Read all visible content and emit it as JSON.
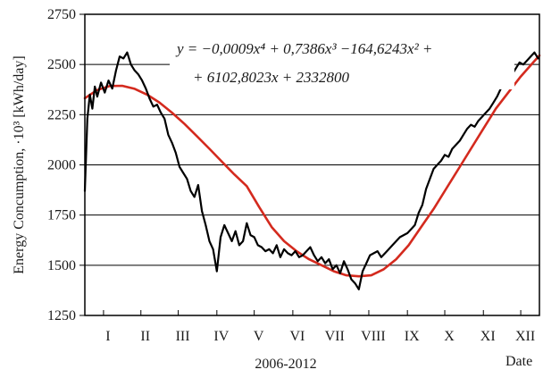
{
  "chart_data": {
    "type": "line",
    "ylabel": "Energy Concumption, ·10³ [kWh/day]",
    "xlabel": "2006-2012",
    "xlabel_right": "Date",
    "ylim": [
      1250,
      2750
    ],
    "yticks": [
      1250,
      1500,
      1750,
      2000,
      2250,
      2500,
      2750
    ],
    "xlim": [
      0,
      365
    ],
    "month_ticks": [
      {
        "label": "I",
        "x": 15
      },
      {
        "label": "II",
        "x": 45
      },
      {
        "label": "III",
        "x": 75
      },
      {
        "label": "IV",
        "x": 106
      },
      {
        "label": "V",
        "x": 136
      },
      {
        "label": "VI",
        "x": 167
      },
      {
        "label": "VII",
        "x": 197
      },
      {
        "label": "VIII",
        "x": 228
      },
      {
        "label": "IX",
        "x": 259
      },
      {
        "label": "X",
        "x": 289
      },
      {
        "label": "XI",
        "x": 320
      },
      {
        "label": "XII",
        "x": 350
      }
    ],
    "grid": "horizontal",
    "equation_line1": "y = −0,0009x⁴ + 0,7386x³ −164,6243x² +",
    "equation_line2": "+ 6102,8023x + 2332800",
    "series": [
      {
        "color": "#000000",
        "x": [
          0,
          2,
          4,
          6,
          8,
          10,
          13,
          16,
          19,
          22,
          25,
          28,
          31,
          34,
          37,
          40,
          43,
          46,
          49,
          52,
          55,
          58,
          61,
          64,
          67,
          70,
          73,
          76,
          79,
          82,
          85,
          88,
          91,
          94,
          97,
          100,
          103,
          106,
          109,
          112,
          115,
          118,
          121,
          124,
          127,
          130,
          133,
          136,
          139,
          142,
          145,
          148,
          151,
          154,
          157,
          160,
          163,
          166,
          169,
          172,
          175,
          178,
          181,
          184,
          187,
          190,
          193,
          196,
          199,
          202,
          205,
          208,
          211,
          214,
          217,
          220,
          223,
          226,
          229,
          232,
          235,
          238,
          241,
          244,
          247,
          250,
          253,
          256,
          259,
          262,
          265,
          268,
          271,
          274,
          277,
          280,
          283,
          286,
          289,
          292,
          295,
          298,
          301,
          304,
          307,
          310,
          313,
          316,
          319,
          322,
          325,
          328,
          331,
          334,
          337,
          340,
          343,
          346,
          349,
          352,
          355,
          358,
          361,
          364
        ],
        "y": [
          1870,
          2230,
          2350,
          2280,
          2390,
          2340,
          2410,
          2360,
          2420,
          2380,
          2470,
          2540,
          2530,
          2560,
          2500,
          2470,
          2450,
          2420,
          2380,
          2330,
          2290,
          2300,
          2260,
          2230,
          2150,
          2110,
          2060,
          1990,
          1960,
          1930,
          1870,
          1840,
          1900,
          1770,
          1700,
          1620,
          1580,
          1470,
          1640,
          1700,
          1660,
          1620,
          1670,
          1600,
          1620,
          1710,
          1650,
          1640,
          1600,
          1590,
          1570,
          1580,
          1560,
          1600,
          1540,
          1580,
          1560,
          1550,
          1570,
          1540,
          1550,
          1570,
          1590,
          1550,
          1520,
          1540,
          1510,
          1530,
          1480,
          1500,
          1460,
          1520,
          1480,
          1430,
          1410,
          1380,
          1470,
          1510,
          1550,
          1560,
          1570,
          1540,
          1560,
          1580,
          1600,
          1620,
          1640,
          1650,
          1660,
          1680,
          1700,
          1760,
          1800,
          1880,
          1930,
          1980,
          2000,
          2020,
          2050,
          2040,
          2080,
          2100,
          2120,
          2150,
          2180,
          2200,
          2190,
          2220,
          2240,
          2260,
          2280,
          2310,
          2340,
          2380,
          2400,
          2430,
          2450,
          2480,
          2510,
          2500,
          2520,
          2540,
          2560,
          2530
        ]
      },
      {
        "color": "#d42a1e",
        "x": [
          0,
          10,
          20,
          30,
          40,
          50,
          60,
          70,
          80,
          90,
          100,
          110,
          120,
          130,
          140,
          150,
          160,
          170,
          180,
          190,
          200,
          210,
          220,
          230,
          240,
          250,
          260,
          270,
          280,
          290,
          300,
          310,
          320,
          330,
          340,
          350,
          360,
          365
        ],
        "y": [
          2332,
          2373,
          2393,
          2394,
          2379,
          2350,
          2310,
          2260,
          2204,
          2143,
          2080,
          2016,
          1953,
          1894,
          1790,
          1690,
          1620,
          1570,
          1530,
          1500,
          1470,
          1450,
          1445,
          1450,
          1480,
          1530,
          1600,
          1690,
          1780,
          1880,
          1980,
          2080,
          2180,
          2280,
          2360,
          2440,
          2510,
          2545
        ]
      }
    ]
  }
}
